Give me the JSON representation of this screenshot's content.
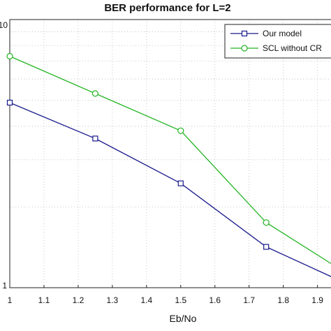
{
  "chart_data": {
    "type": "line",
    "title": "BER performance for L=2",
    "xlabel": "Eb/No",
    "ylabel": "",
    "x_ticks": [
      "1",
      "1.1",
      "1.2",
      "1.3",
      "1.4",
      "1.5",
      "1.6",
      "1.7",
      "1.8",
      "1.9"
    ],
    "y_tick_top": "10",
    "y_tick_bottom": "1",
    "xlim": [
      1.0,
      1.94
    ],
    "ylim": [
      1.0,
      10.0
    ],
    "y_scale": "log",
    "grid": true,
    "legend_position": "top-right",
    "series": [
      {
        "name": "Our model",
        "color": "#1a1a8c",
        "marker": "square",
        "x": [
          1.0,
          1.25,
          1.5,
          1.75,
          1.94
        ],
        "y": [
          4.9,
          3.6,
          2.45,
          1.42,
          1.1
        ]
      },
      {
        "name": "SCL without CR",
        "color": "#22b422",
        "marker": "circle",
        "x": [
          1.0,
          1.25,
          1.5,
          1.75,
          1.94
        ],
        "y": [
          7.3,
          5.3,
          3.85,
          1.75,
          1.23
        ]
      }
    ]
  }
}
